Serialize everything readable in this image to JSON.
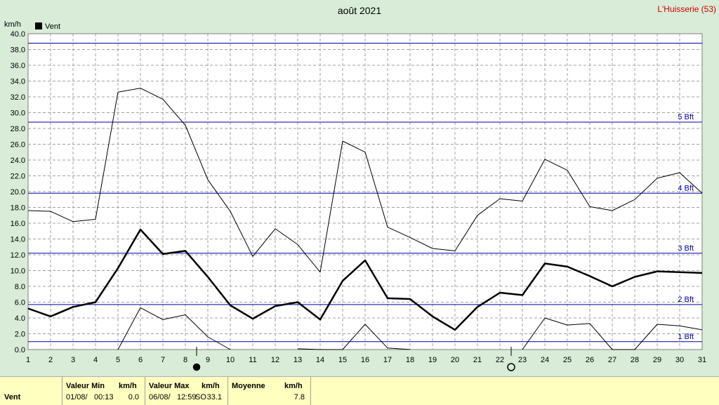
{
  "title": "août 2021",
  "station": "L'Huisserie (53)",
  "colors": {
    "background": "#d8ecd8",
    "station": "#cc0000",
    "beaufort": "#0000aa",
    "grid": "#a0a0a0"
  },
  "chart_data": {
    "type": "line",
    "ylabel": "km/h",
    "ylim": [
      0,
      40
    ],
    "yticks": [
      "0.0",
      "2.0",
      "4.0",
      "6.0",
      "8.0",
      "10.0",
      "12.0",
      "14.0",
      "16.0",
      "18.0",
      "20.0",
      "22.0",
      "24.0",
      "26.0",
      "28.0",
      "30.0",
      "32.0",
      "34.0",
      "36.0",
      "38.0",
      "40.0"
    ],
    "x": [
      1,
      2,
      3,
      4,
      5,
      6,
      7,
      8,
      9,
      10,
      11,
      12,
      13,
      14,
      15,
      16,
      17,
      18,
      19,
      20,
      21,
      22,
      23,
      24,
      25,
      26,
      27,
      28,
      29,
      30,
      31
    ],
    "grid": true,
    "legend": {
      "label": "Vent",
      "position": "top-left"
    },
    "series": [
      {
        "name": "Vent",
        "role": "mean",
        "values": [
          5.2,
          4.2,
          5.4,
          6.0,
          10.3,
          15.2,
          12.1,
          12.5,
          9.2,
          5.6,
          3.9,
          5.5,
          6.0,
          3.8,
          8.7,
          11.3,
          6.5,
          6.4,
          4.2,
          2.5,
          5.4,
          7.2,
          6.9,
          10.9,
          10.5,
          9.3,
          8.0,
          9.2,
          9.9,
          9.8,
          9.7
        ]
      },
      {
        "role": "max",
        "values": [
          17.6,
          17.5,
          16.2,
          16.5,
          32.6,
          33.1,
          31.7,
          28.4,
          21.5,
          17.5,
          11.8,
          15.3,
          13.3,
          9.8,
          26.4,
          25.0,
          15.5,
          14.2,
          12.8,
          12.5,
          17.0,
          19.1,
          18.8,
          24.1,
          22.7,
          18.1,
          17.6,
          19.0,
          21.7,
          22.4,
          19.8
        ]
      },
      {
        "role": "min",
        "values": [
          null,
          null,
          null,
          null,
          0.0,
          5.3,
          3.8,
          4.4,
          1.6,
          0.0,
          null,
          null,
          0.1,
          0.0,
          0.0,
          3.2,
          0.2,
          0.0,
          null,
          null,
          null,
          null,
          0.0,
          4.0,
          3.1,
          3.3,
          0.0,
          0.0,
          3.2,
          3.0,
          2.5
        ]
      }
    ],
    "beaufort": [
      {
        "label": "1 Bft",
        "value": 1.0
      },
      {
        "label": "2 Bft",
        "value": 5.7
      },
      {
        "label": "3 Bft",
        "value": 12.2
      },
      {
        "label": "4 Bft",
        "value": 19.8
      },
      {
        "label": "5 Bft",
        "value": 28.8
      },
      {
        "label": "",
        "value": 38.8
      }
    ],
    "moon_phases": [
      {
        "day": 8.5,
        "phase": "new-moon"
      },
      {
        "day": 22.5,
        "phase": "full-moon"
      }
    ]
  },
  "footer": {
    "row_label": "Vent",
    "min_header": "Valeur Min",
    "min_unit": "km/h",
    "min_date": "01/08/",
    "min_time": "00:13",
    "min_value": "0.0",
    "max_header": "Valeur Max",
    "max_unit": "km/h",
    "max_date": "06/08/",
    "max_time": "12:59",
    "max_dir": "SO",
    "max_value": "33.1",
    "avg_header": "Moyenne",
    "avg_unit": "km/h",
    "avg_value": "7.8"
  }
}
